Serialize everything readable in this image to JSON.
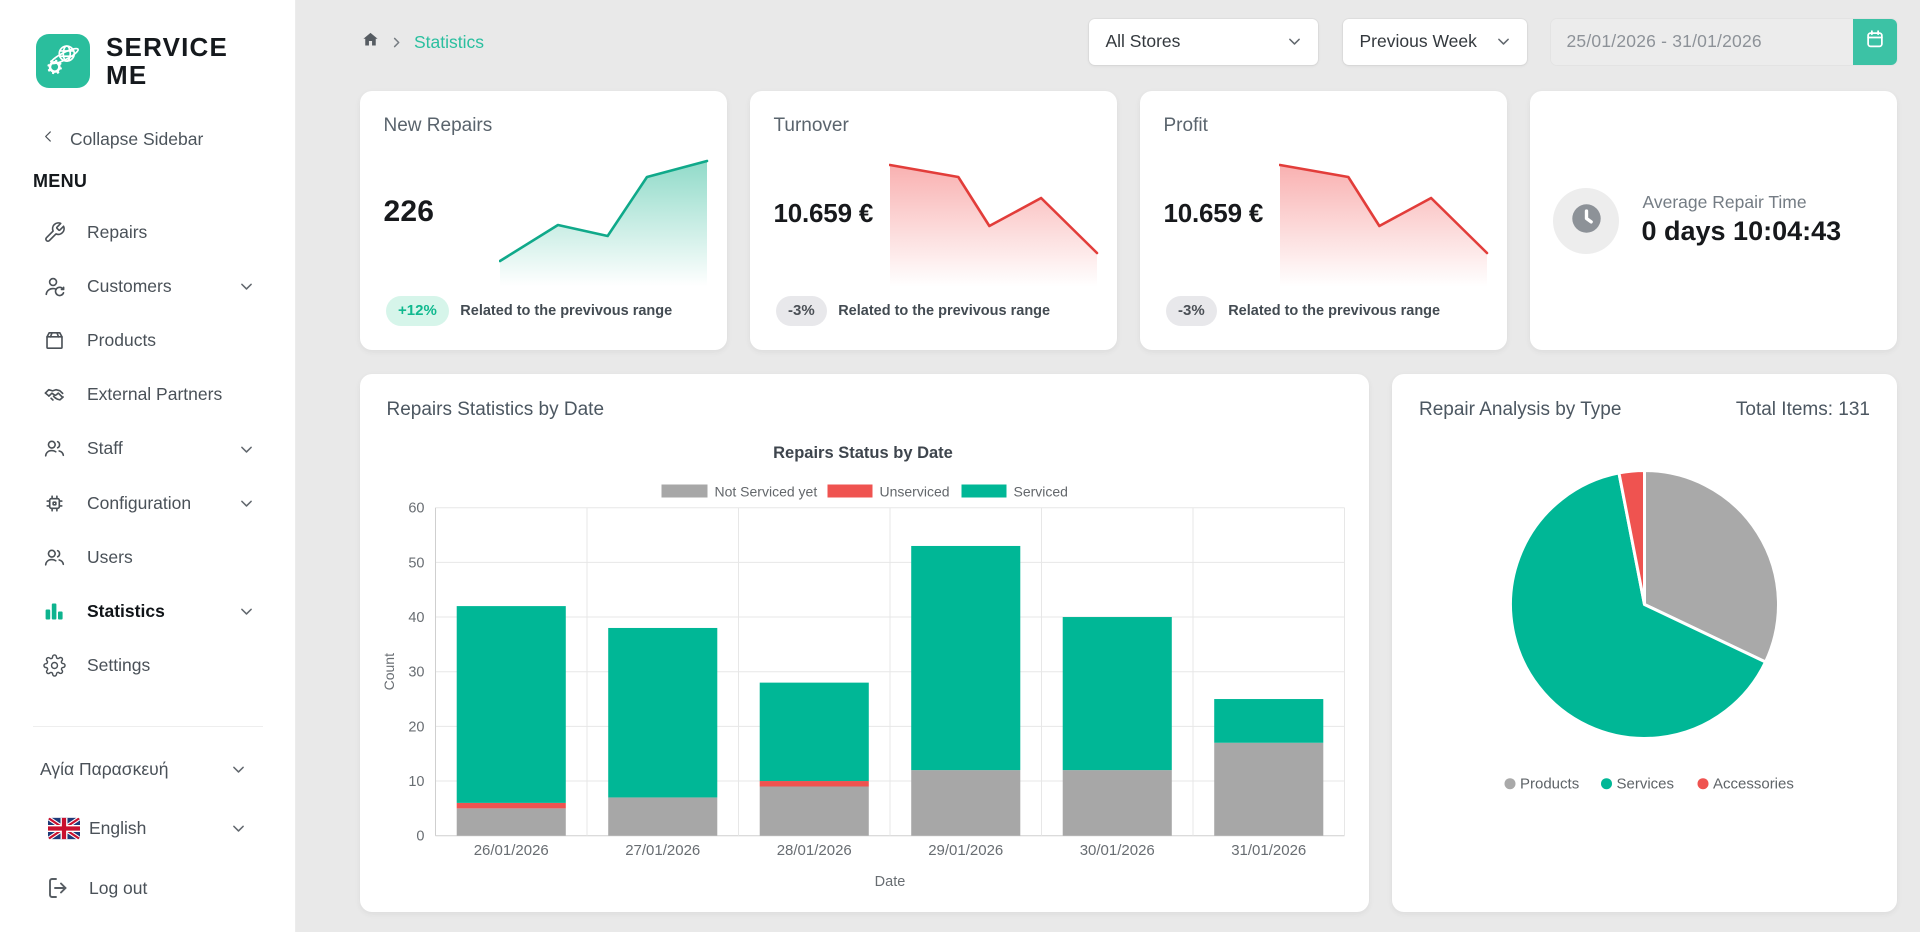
{
  "app": {
    "brand_line1": "SERVICE",
    "brand_line2": "ME",
    "accent_color": "#2abe9d"
  },
  "sidebar": {
    "collapse_label": "Collapse Sidebar",
    "menu_title": "MENU",
    "items": [
      {
        "label": "Repairs",
        "icon": "wrench-icon",
        "chevron": false,
        "active": false
      },
      {
        "label": "Customers",
        "icon": "person-sync-icon",
        "chevron": true,
        "active": false
      },
      {
        "label": "Products",
        "icon": "box-icon",
        "chevron": false,
        "active": false
      },
      {
        "label": "External Partners",
        "icon": "handshake-icon",
        "chevron": false,
        "active": false
      },
      {
        "label": "Staff",
        "icon": "people-icon",
        "chevron": true,
        "active": false
      },
      {
        "label": "Configuration",
        "icon": "chip-icon",
        "chevron": true,
        "active": false
      },
      {
        "label": "Users",
        "icon": "people-icon",
        "chevron": false,
        "active": false
      },
      {
        "label": "Statistics",
        "icon": "bar-chart-icon",
        "chevron": true,
        "active": true
      },
      {
        "label": "Settings",
        "icon": "gear-icon",
        "chevron": false,
        "active": false
      }
    ],
    "store_selector": {
      "label": "Αγία Παρασκευή"
    },
    "language_selector": {
      "label": "English",
      "flag": "uk-flag-icon"
    },
    "logout_label": "Log out"
  },
  "topbar": {
    "breadcrumb": {
      "current": "Statistics"
    },
    "store_filter": {
      "value": "All Stores"
    },
    "period_filter": {
      "value": "Previous Week"
    },
    "date_range": {
      "value": "25/01/2026 - 31/01/2026"
    }
  },
  "kpis": [
    {
      "title": "New Repairs",
      "value": "226",
      "badge": "+12%",
      "badge_type": "positive",
      "note": "Related to the previvous range",
      "spark": {
        "x": [
          0,
          28,
          52,
          71,
          100
        ],
        "v": [
          0,
          36,
          25,
          84,
          100
        ],
        "line_color": "#10a98a",
        "fill_color": "#19b38e"
      }
    },
    {
      "title": "Turnover",
      "value": "10.659 €",
      "badge": "-3%",
      "badge_type": "negative",
      "note": "Related to the previvous range",
      "spark": {
        "x": [
          0,
          33,
          48,
          73,
          100
        ],
        "v": [
          96,
          84,
          35,
          63,
          8
        ],
        "line_color": "#e23d3a",
        "fill_color": "#f25c5c"
      }
    },
    {
      "title": "Profit",
      "value": "10.659 €",
      "badge": "-3%",
      "badge_type": "negative",
      "note": "Related to the previvous range",
      "spark": {
        "x": [
          0,
          33,
          48,
          73,
          100
        ],
        "v": [
          96,
          84,
          35,
          63,
          8
        ],
        "line_color": "#e23d3a",
        "fill_color": "#f25c5c"
      }
    }
  ],
  "average_repair_time": {
    "title": "Average Repair Time",
    "value": "0 days 10:04:43"
  },
  "chart_data": [
    {
      "type": "bar",
      "stacked": true,
      "card_title": "Repairs Statistics by Date",
      "title": "Repairs Status by Date",
      "categories": [
        "26/01/2026",
        "27/01/2026",
        "28/01/2026",
        "29/01/2026",
        "30/01/2026",
        "31/01/2026"
      ],
      "series": [
        {
          "name": "Not Serviced yet",
          "color": "#a7a7a7",
          "values": [
            5,
            7,
            9,
            12,
            12,
            17
          ]
        },
        {
          "name": "Unserviced",
          "color": "#ef5350",
          "values": [
            1,
            0,
            1,
            0,
            0,
            0
          ]
        },
        {
          "name": "Serviced",
          "color": "#00b796",
          "values": [
            36,
            31,
            18,
            41,
            28,
            8
          ]
        }
      ],
      "xlabel": "Date",
      "ylabel": "Count",
      "ylim": [
        0,
        60
      ],
      "ytick_step": 10,
      "legend_position": "top",
      "grid": true
    },
    {
      "type": "pie",
      "card_title": "Repair Analysis by Type",
      "total_label": "Total Items: 131",
      "labels": [
        "Products",
        "Services",
        "Accessories"
      ],
      "values": [
        42,
        85,
        4
      ],
      "colors": [
        "#a9a9a9",
        "#00b796",
        "#ef5350"
      ],
      "legend_position": "bottom"
    }
  ]
}
